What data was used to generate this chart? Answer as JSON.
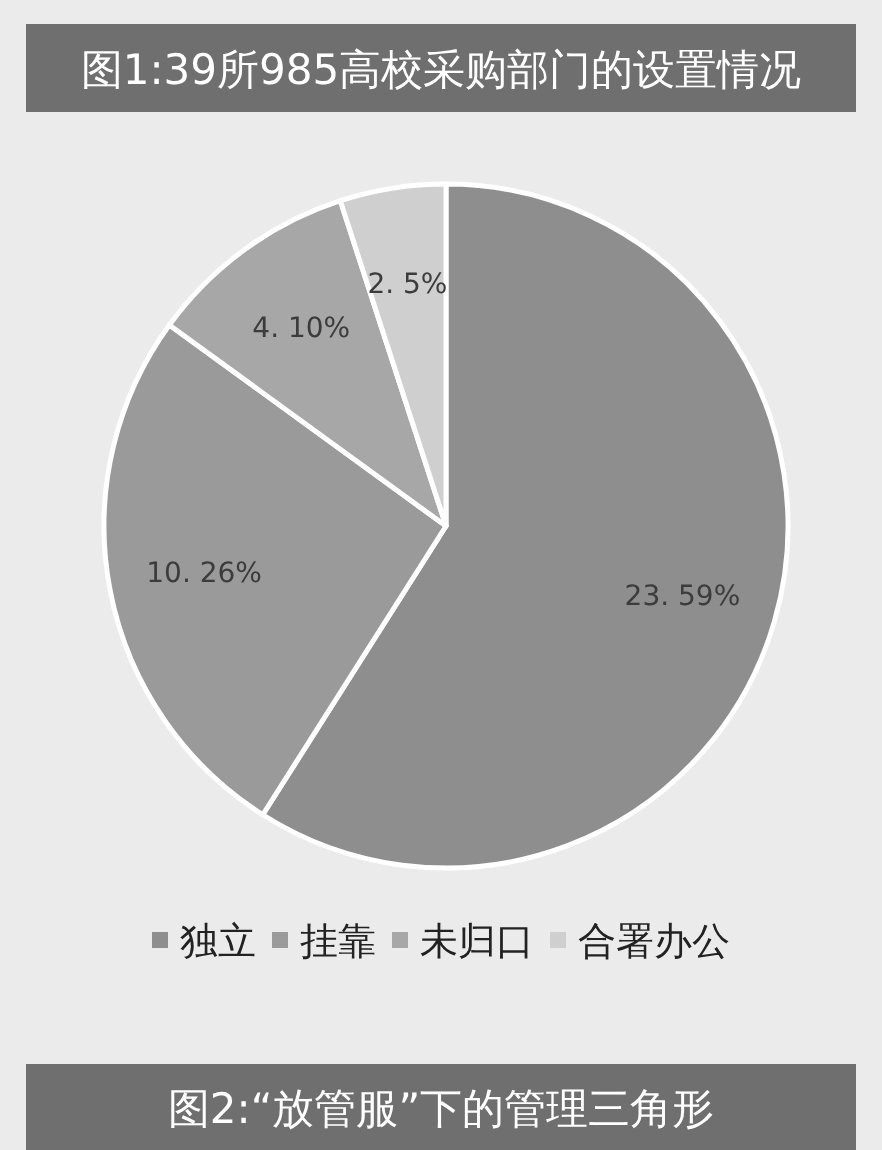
{
  "chart_data": {
    "type": "pie",
    "title": "图1:39所985高校采购部门的设置情况",
    "categories": [
      "独立",
      "挂靠",
      "未归口",
      "合署办公"
    ],
    "values": [
      59,
      26,
      10,
      5
    ],
    "colors": [
      "#8e8e8e",
      "#9a9a9a",
      "#a7a7a7",
      "#cfcfcf"
    ],
    "value_labels": [
      "23. 59%",
      "10. 26%",
      "4. 10%",
      "2. 5%"
    ],
    "legend": "bottom",
    "annotations": [
      "图2:“放管服”下的管理三角形"
    ]
  }
}
